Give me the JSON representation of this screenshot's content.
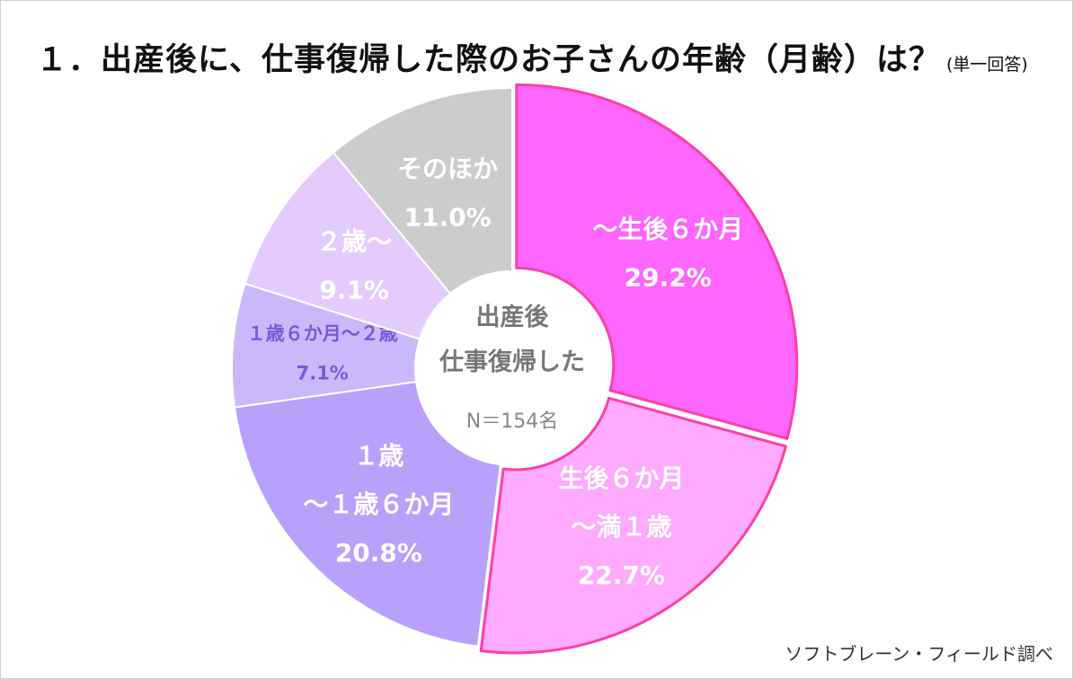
{
  "title": "１．出産後に、仕事復帰した際のお子さんの年齢（月齢）は？",
  "title_note": "(単一回答)",
  "source": "ソフトブレーン・フィールド調べ",
  "center": {
    "line1": "出産後",
    "line2": "仕事復帰した",
    "n": "N＝154名"
  },
  "chart_data": {
    "type": "pie",
    "variant": "donut",
    "categories": [
      "～生後６か月",
      "生後６か月～満１歳",
      "１歳～１歳６か月",
      "１歳６か月～２歳",
      "２歳～",
      "そのほか"
    ],
    "values": [
      29.2,
      22.7,
      20.8,
      7.1,
      9.1,
      11.0
    ],
    "unit": "%",
    "slices": [
      {
        "label_lines": [
          "～生後６か月"
        ],
        "value_text": "29.2%",
        "color": "#ff66ff",
        "stroke": "#ff3fa6",
        "label_color": "#ffffff"
      },
      {
        "label_lines": [
          "生後６か月",
          "～満１歳"
        ],
        "value_text": "22.7%",
        "color": "#ffaaff",
        "stroke": "#ff3fa6",
        "label_color": "#ffffff"
      },
      {
        "label_lines": [
          "１歳",
          "～１歳６か月"
        ],
        "value_text": "20.8%",
        "color": "#b9a0fb",
        "stroke": "#ffffff",
        "label_color": "#ffffff"
      },
      {
        "label_lines": [
          "１歳６か月～２歳"
        ],
        "value_text": "7.1%",
        "color": "#cbb8fb",
        "stroke": "#ffffff",
        "label_color": "#7b58d8"
      },
      {
        "label_lines": [
          "２歳～"
        ],
        "value_text": "9.1%",
        "color": "#e3ccfd",
        "stroke": "#ffffff",
        "label_color": "#ffffff"
      },
      {
        "label_lines": [
          "そのほか"
        ],
        "value_text": "11.0%",
        "color": "#cccccc",
        "stroke": "#ffffff",
        "label_color": "#ffffff"
      }
    ]
  }
}
